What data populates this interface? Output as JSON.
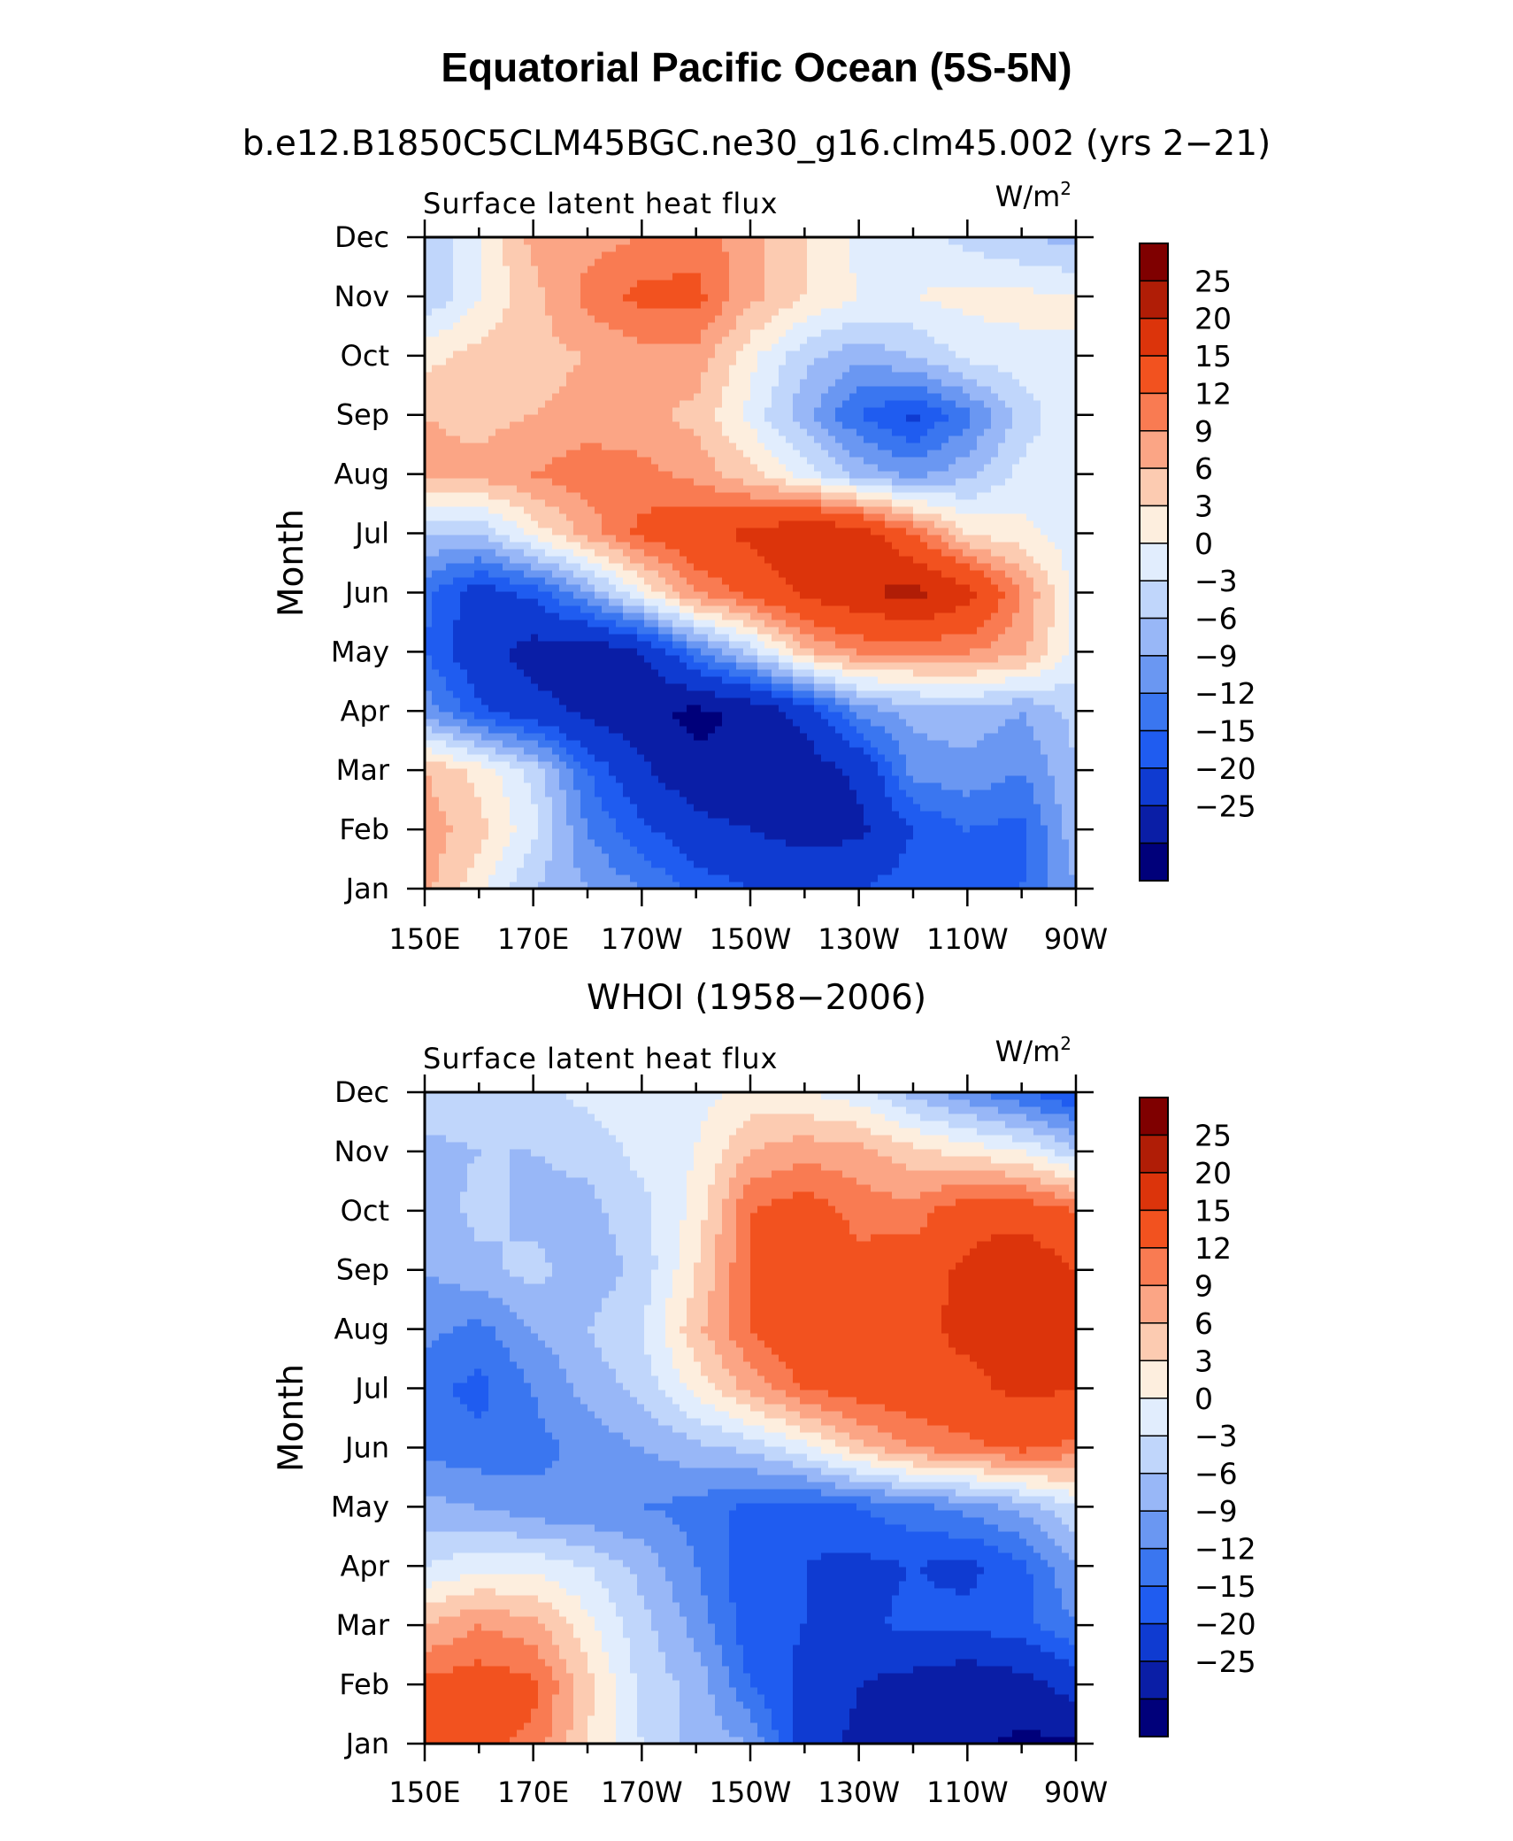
{
  "title": "Equatorial Pacific Ocean (5S-5N)",
  "chart_data": [
    {
      "type": "heatmap",
      "subtitle": "b.e12.B1850C5CLM45BGC.ne30_g16.clm45.002 (yrs 2−21)",
      "left_label": "Surface latent heat flux",
      "units": "W/m",
      "units_sup": "2",
      "ylabel": "Month",
      "x_ticks": [
        "150E",
        "170E",
        "170W",
        "150W",
        "130W",
        "110W",
        "90W"
      ],
      "y_ticks": [
        "Jan",
        "Feb",
        "Mar",
        "Apr",
        "May",
        "Jun",
        "Jul",
        "Aug",
        "Sep",
        "Oct",
        "Nov",
        "Dec"
      ],
      "xlim": [
        "150E",
        "90W"
      ],
      "ylim": [
        "Jan",
        "Dec"
      ],
      "x": [
        150,
        160,
        170,
        180,
        190,
        200,
        210,
        220,
        230,
        240,
        250,
        260,
        270
      ],
      "y": [
        "Jan",
        "Feb",
        "Mar",
        "Apr",
        "May",
        "Jun",
        "Jul",
        "Aug",
        "Sep",
        "Oct",
        "Nov",
        "Dec"
      ],
      "z": [
        [
          10,
          4,
          -3,
          -6,
          -9,
          -13,
          -15,
          -16,
          -15,
          -13,
          -12,
          -12,
          -6
        ],
        [
          11,
          7,
          1,
          -9,
          -14,
          -18,
          -20,
          -22,
          -21,
          -15,
          -12,
          -13,
          -4
        ],
        [
          9,
          5,
          -1,
          -12,
          -19,
          -24,
          -25,
          -23,
          -19,
          -8,
          -7,
          -9,
          -3
        ],
        [
          -7,
          -14,
          -18,
          -21,
          -24,
          -26,
          -24,
          -18,
          -8,
          -5,
          -4,
          -6,
          -2
        ],
        [
          -12,
          -18,
          -22,
          -24,
          -20,
          -10,
          -2,
          8,
          12,
          12,
          12,
          10,
          2
        ],
        [
          -11,
          -17,
          -14,
          -6,
          3,
          12,
          16,
          21,
          24,
          27,
          22,
          12,
          2
        ],
        [
          -3,
          -3,
          4,
          10,
          16,
          19,
          21,
          25,
          23,
          15,
          6,
          4,
          1
        ],
        [
          10,
          10,
          12,
          14,
          13,
          11,
          7,
          2,
          -4,
          -7,
          -4,
          1,
          2
        ],
        [
          9,
          8,
          9,
          10,
          10,
          8,
          2,
          -5,
          -12,
          -16,
          -10,
          -2,
          3
        ],
        [
          5,
          7,
          8,
          9,
          11,
          11,
          4,
          -2,
          -5,
          -3,
          1,
          2,
          3
        ],
        [
          -3,
          3,
          8,
          13,
          16,
          16,
          10,
          6,
          3,
          3,
          4,
          4,
          3
        ],
        [
          -3,
          3,
          10,
          11,
          12,
          14,
          10,
          6,
          2,
          1,
          -1,
          -3,
          -4
        ]
      ]
    },
    {
      "type": "heatmap",
      "subtitle": "WHOI (1958−2006)",
      "left_label": "Surface latent heat flux",
      "units": "W/m",
      "units_sup": "2",
      "ylabel": "Month",
      "x_ticks": [
        "150E",
        "170E",
        "170W",
        "150W",
        "130W",
        "110W",
        "90W"
      ],
      "y_ticks": [
        "Jan",
        "Feb",
        "Mar",
        "Apr",
        "May",
        "Jun",
        "Jul",
        "Aug",
        "Sep",
        "Oct",
        "Nov",
        "Dec"
      ],
      "xlim": [
        "150E",
        "90W"
      ],
      "ylim": [
        "Jan",
        "Dec"
      ],
      "x": [
        150,
        160,
        170,
        180,
        190,
        200,
        210,
        220,
        230,
        240,
        250,
        260,
        270
      ],
      "y": [
        "Jan",
        "Feb",
        "Mar",
        "Apr",
        "May",
        "Jun",
        "Jul",
        "Aug",
        "Sep",
        "Oct",
        "Nov",
        "Dec"
      ],
      "z": [
        [
          16,
          16,
          14,
          6,
          0,
          -4,
          -6,
          -18,
          -21,
          -22,
          -24,
          -26,
          -26
        ],
        [
          16,
          17,
          16,
          7,
          -1,
          -4,
          -12,
          -16,
          -20,
          -22,
          -24,
          -22,
          -18
        ],
        [
          9,
          12,
          10,
          4,
          -2,
          -7,
          -14,
          -15,
          -16,
          -14,
          -14,
          -13,
          -9
        ],
        [
          0,
          2,
          2,
          0,
          -4,
          -9,
          -14,
          -15,
          -16,
          -15,
          -16,
          -13,
          -6
        ],
        [
          -5,
          -6,
          -8,
          -9,
          -9,
          -10,
          -13,
          -14,
          -12,
          -10,
          -8,
          -5,
          0
        ],
        [
          -10,
          -11,
          -10,
          -8,
          -6,
          -4,
          -2,
          2,
          8,
          12,
          14,
          16,
          14
        ],
        [
          -11,
          -13,
          -9,
          -5,
          -2,
          4,
          10,
          15,
          17,
          18,
          19,
          21,
          20
        ],
        [
          -8,
          -10,
          -6,
          -3,
          0,
          8,
          15,
          20,
          18,
          19,
          21,
          22,
          20
        ],
        [
          -6,
          -4,
          -2,
          -5,
          -2,
          6,
          15,
          18,
          16,
          18,
          21,
          24,
          20
        ],
        [
          -5,
          -2,
          -4,
          -4,
          -1,
          4,
          15,
          17,
          14,
          13,
          18,
          18,
          15
        ],
        [
          -4,
          -3,
          -3,
          -2,
          1,
          3,
          9,
          11,
          10,
          7,
          5,
          3,
          -2
        ],
        [
          -1,
          -1,
          -1,
          1,
          2,
          2,
          4,
          3,
          1,
          -4,
          -8,
          -12,
          -15
        ]
      ]
    }
  ],
  "colorbar": {
    "levels": [
      "25",
      "20",
      "15",
      "12",
      "9",
      "6",
      "3",
      "0",
      "−3",
      "−6",
      "−9",
      "−12",
      "−15",
      "−20",
      "−25"
    ],
    "bounds": [
      -1000,
      -25,
      -20,
      -15,
      -12,
      -9,
      -6,
      -3,
      0,
      3,
      6,
      9,
      12,
      15,
      20,
      25,
      1000
    ],
    "colors": [
      "#00007a",
      "#0a1ea6",
      "#0f3bd1",
      "#1f5cf0",
      "#3a76f0",
      "#6a97f2",
      "#98b7f7",
      "#c0d6fb",
      "#e1edfd",
      "#fdeede",
      "#fccbb1",
      "#fba585",
      "#f97b52",
      "#f2521f",
      "#dc340b",
      "#b01d06",
      "#7f0000"
    ]
  }
}
